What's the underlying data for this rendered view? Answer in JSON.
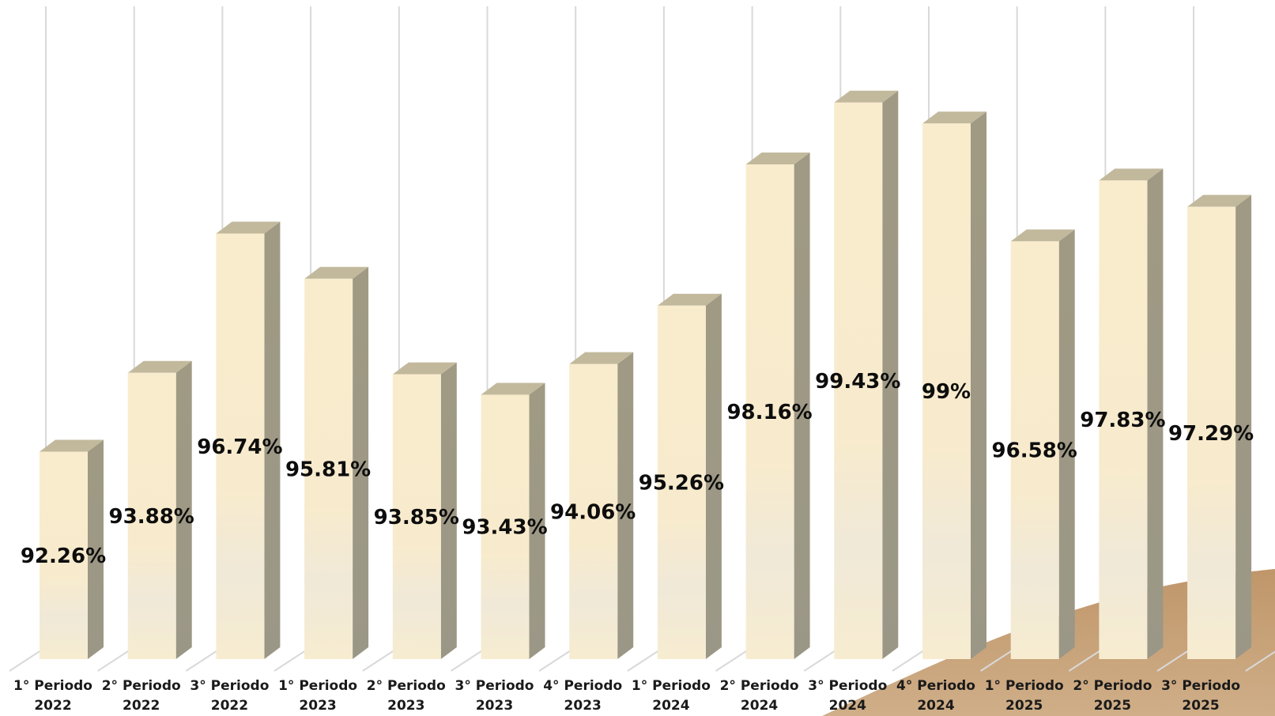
{
  "chart_data": {
    "type": "bar",
    "categories": [
      [
        "1° Periodo",
        "2022"
      ],
      [
        "2° Periodo",
        "2022"
      ],
      [
        "3° Periodo",
        "2022"
      ],
      [
        "1° Periodo",
        "2023"
      ],
      [
        "2° Periodo",
        "2023"
      ],
      [
        "3° Periodo",
        "2023"
      ],
      [
        "4° Periodo",
        "2023"
      ],
      [
        "1° Periodo",
        "2024"
      ],
      [
        "2° Periodo",
        "2024"
      ],
      [
        "3° Periodo",
        "2024"
      ],
      [
        "4° Periodo",
        "2024"
      ],
      [
        "1° Periodo",
        "2025"
      ],
      [
        "2° Periodo",
        "2025"
      ],
      [
        "3° Periodo",
        "2025"
      ]
    ],
    "values": [
      92.26,
      93.88,
      96.74,
      95.81,
      93.85,
      93.43,
      94.06,
      95.26,
      98.16,
      99.43,
      99,
      96.58,
      97.83,
      97.29
    ],
    "value_labels": [
      "92.26%",
      "93.88%",
      "96.74%",
      "95.81%",
      "93.85%",
      "93.43%",
      "94.06%",
      "95.26%",
      "98.16%",
      "99.43%",
      "99%",
      "96.58%",
      "97.83%",
      "97.29%"
    ],
    "ylim": [
      88,
      100.4
    ],
    "grid": "vertical",
    "style": "3d-column",
    "colors": {
      "bar_front": "#f8ecce",
      "bar_side": "#9f9884",
      "bar_top": "#c2b99d",
      "grid": "#d9d9d9",
      "decor": "#c29a6b"
    }
  }
}
